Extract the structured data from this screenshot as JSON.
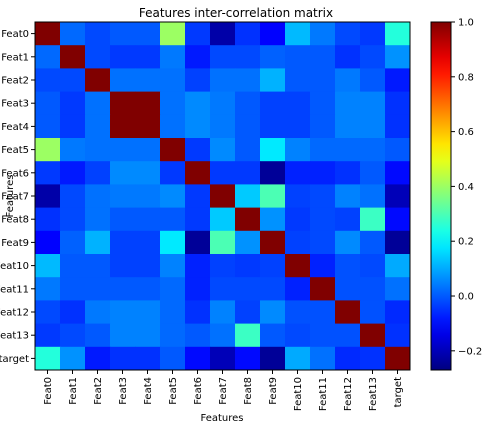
{
  "chart_data": {
    "type": "heatmap",
    "title": "Features inter-correlation matrix",
    "xlabel": "Features",
    "ylabel": "Features",
    "labels": [
      "Feat0",
      "Feat1",
      "Feat2",
      "Feat3",
      "Feat4",
      "Feat5",
      "Feat6",
      "Feat7",
      "Feat8",
      "Feat9",
      "Feat10",
      "Feat11",
      "Feat12",
      "Feat13",
      "target"
    ],
    "values": [
      [
        1.0,
        0.02,
        -0.02,
        0.0,
        0.0,
        0.4,
        -0.04,
        -0.22,
        -0.05,
        -0.11,
        0.12,
        0.04,
        -0.02,
        -0.04,
        0.25
      ],
      [
        0.02,
        1.0,
        -0.02,
        -0.04,
        -0.04,
        0.04,
        -0.08,
        -0.02,
        -0.02,
        0.01,
        0.0,
        0.0,
        -0.05,
        -0.02,
        0.07
      ],
      [
        -0.02,
        -0.02,
        1.0,
        0.03,
        0.03,
        0.03,
        -0.03,
        0.03,
        0.03,
        0.11,
        0.0,
        0.0,
        0.04,
        0.0,
        -0.08
      ],
      [
        0.0,
        -0.04,
        0.03,
        1.0,
        1.0,
        0.03,
        0.06,
        0.04,
        0.0,
        -0.03,
        -0.03,
        0.0,
        0.05,
        0.05,
        -0.05
      ],
      [
        0.0,
        -0.04,
        0.03,
        1.0,
        1.0,
        0.03,
        0.06,
        0.04,
        0.0,
        -0.03,
        -0.03,
        0.0,
        0.05,
        0.05,
        -0.05
      ],
      [
        0.4,
        0.04,
        0.03,
        0.03,
        0.03,
        1.0,
        -0.04,
        0.06,
        0.0,
        0.18,
        0.05,
        0.02,
        0.02,
        0.02,
        0.0
      ],
      [
        -0.04,
        -0.08,
        -0.03,
        0.06,
        0.06,
        -0.04,
        1.0,
        -0.04,
        -0.04,
        -0.24,
        -0.07,
        -0.07,
        -0.05,
        0.0,
        -0.1
      ],
      [
        -0.22,
        -0.02,
        0.03,
        0.04,
        0.04,
        0.06,
        -0.04,
        1.0,
        0.14,
        0.3,
        -0.03,
        -0.02,
        0.05,
        0.03,
        -0.2
      ],
      [
        -0.05,
        -0.02,
        0.03,
        0.0,
        0.0,
        0.0,
        -0.04,
        0.14,
        1.0,
        0.07,
        -0.04,
        -0.02,
        -0.03,
        0.28,
        -0.1
      ],
      [
        -0.11,
        0.01,
        0.11,
        -0.03,
        -0.03,
        0.18,
        -0.24,
        0.3,
        0.07,
        1.0,
        -0.03,
        -0.02,
        0.06,
        0.0,
        -0.24
      ],
      [
        0.12,
        0.0,
        0.0,
        -0.03,
        -0.03,
        0.05,
        -0.07,
        -0.03,
        -0.04,
        -0.03,
        1.0,
        -0.07,
        -0.01,
        -0.02,
        0.1
      ],
      [
        0.04,
        0.0,
        0.0,
        0.0,
        0.0,
        0.02,
        -0.07,
        -0.02,
        -0.02,
        -0.02,
        -0.07,
        1.0,
        -0.01,
        -0.01,
        0.03
      ],
      [
        -0.02,
        -0.05,
        0.04,
        0.05,
        0.05,
        0.02,
        -0.05,
        0.05,
        -0.03,
        0.06,
        -0.01,
        -0.01,
        1.0,
        -0.01,
        -0.06
      ],
      [
        -0.04,
        -0.02,
        0.0,
        0.05,
        0.05,
        0.02,
        0.0,
        0.03,
        0.28,
        0.0,
        -0.02,
        -0.01,
        -0.01,
        1.0,
        -0.05
      ],
      [
        0.25,
        0.07,
        -0.08,
        -0.05,
        -0.05,
        0.0,
        -0.1,
        -0.2,
        -0.1,
        -0.24,
        0.1,
        0.03,
        -0.06,
        -0.05,
        1.0
      ]
    ],
    "colormap": "jet",
    "vmin": -0.27,
    "vmax": 1.0,
    "colorbar_ticks": [
      1.0,
      0.8,
      0.6,
      0.4,
      0.2,
      0.0,
      -0.2
    ],
    "colorbar_tick_labels": [
      "1.0",
      "0.8",
      "0.6",
      "0.4",
      "0.2",
      "0.0",
      "−0.2"
    ],
    "grid": false,
    "legend": "colorbar-right"
  }
}
